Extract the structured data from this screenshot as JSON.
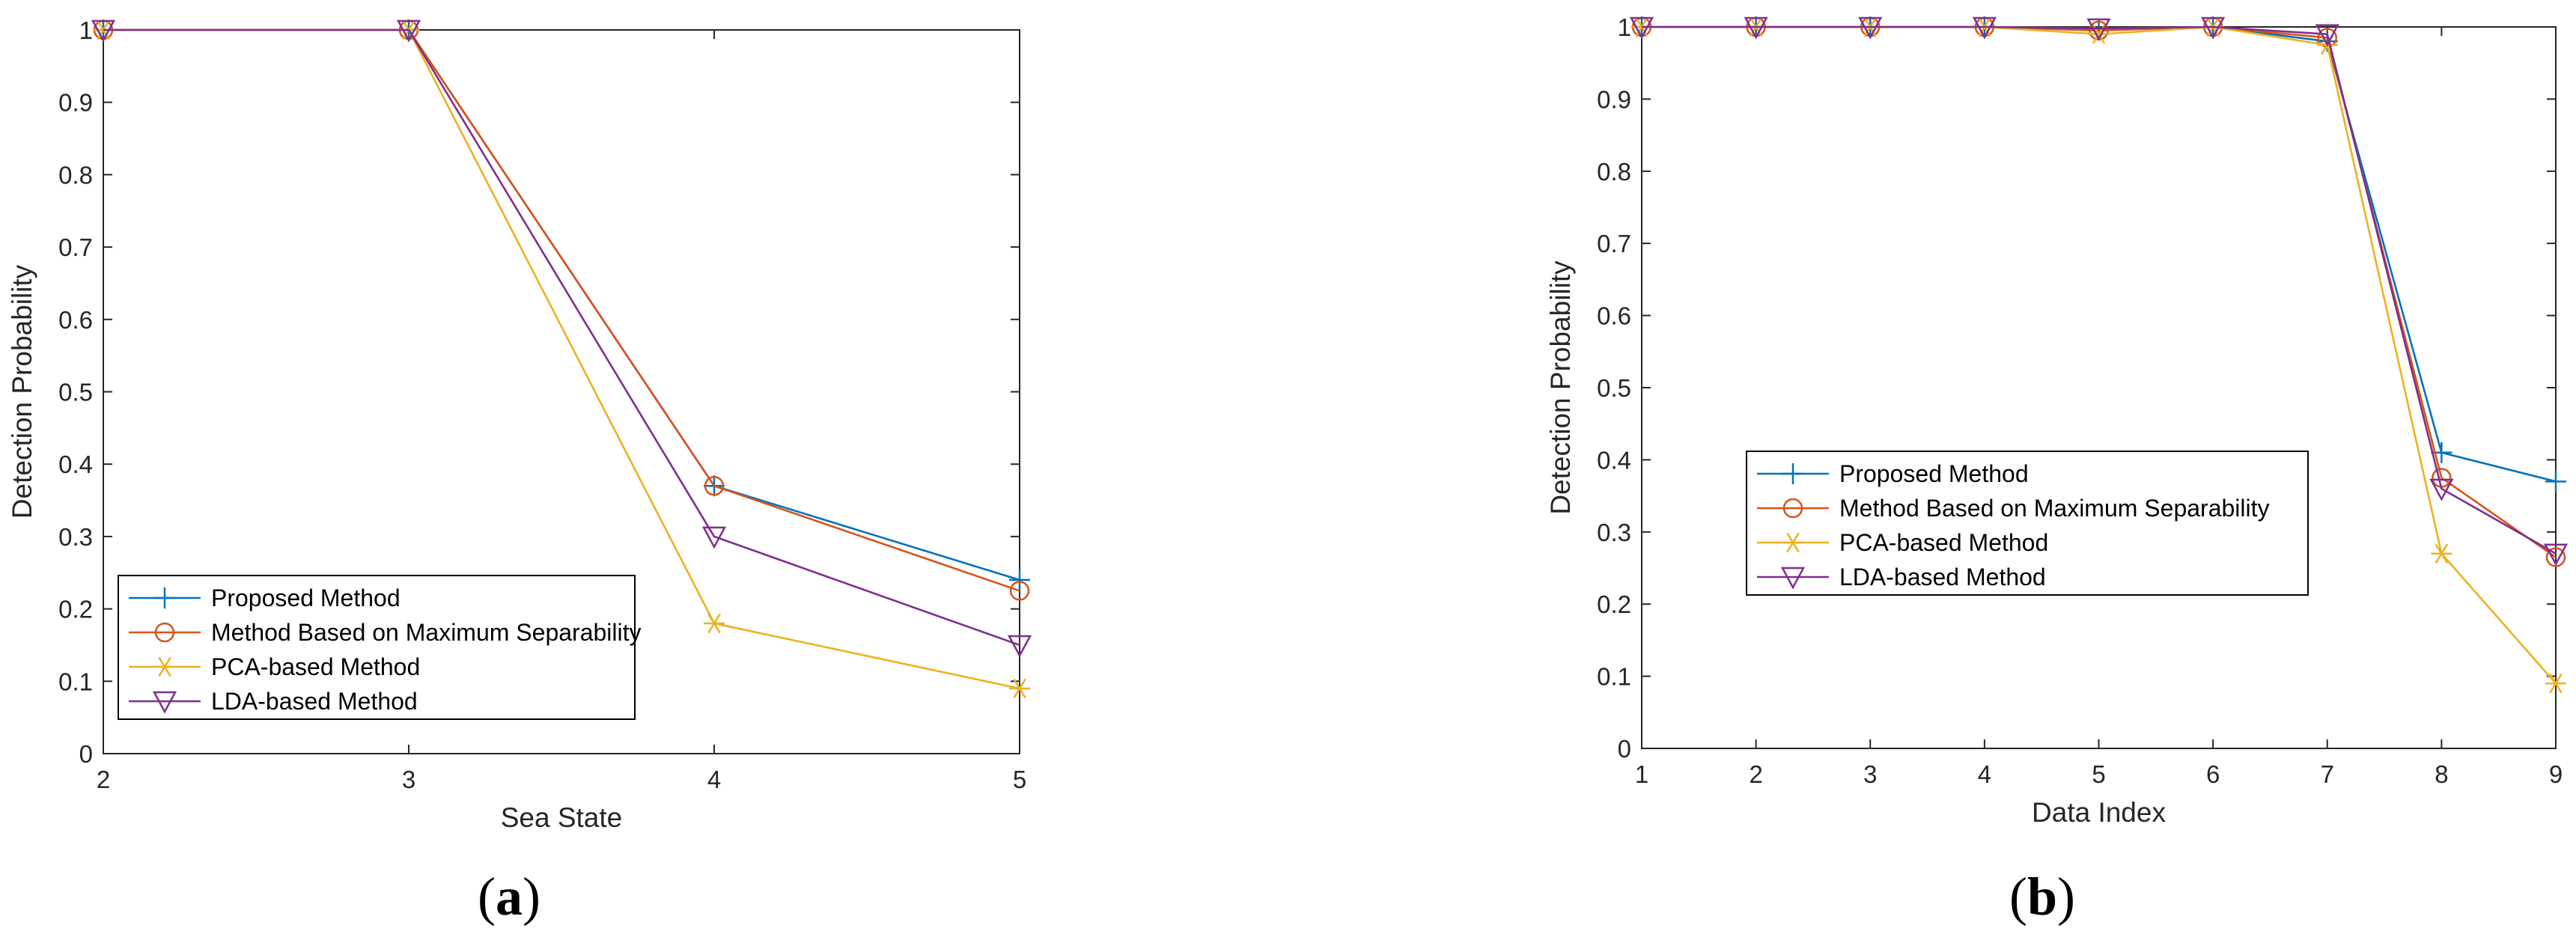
{
  "colors": {
    "proposed": "#0072BD",
    "max_sep": "#D95319",
    "pca": "#EDB120",
    "lda": "#7E2F8E",
    "axis": "#262626"
  },
  "chart_data": [
    {
      "type": "line",
      "panel_label": "a",
      "xlabel": "Sea State",
      "ylabel": "Detection Probability",
      "x": [
        2,
        3,
        4,
        5
      ],
      "xlim": [
        2,
        5
      ],
      "ylim": [
        0,
        1
      ],
      "xticks": [
        "2",
        "3",
        "4",
        "5"
      ],
      "yticks": [
        "0",
        "0.1",
        "0.2",
        "0.3",
        "0.4",
        "0.5",
        "0.6",
        "0.7",
        "0.8",
        "0.9",
        "1"
      ],
      "grid": false,
      "legend_position": "lower-left",
      "series": [
        {
          "name": "Proposed Method",
          "marker": "plus",
          "color_key": "proposed",
          "values": [
            1.0,
            1.0,
            0.37,
            0.24
          ]
        },
        {
          "name": "Method Based on Maximum Separability",
          "marker": "circle",
          "color_key": "max_sep",
          "values": [
            1.0,
            1.0,
            0.37,
            0.225
          ]
        },
        {
          "name": "PCA-based Method",
          "marker": "asterisk",
          "color_key": "pca",
          "values": [
            1.0,
            1.0,
            0.18,
            0.09
          ]
        },
        {
          "name": "LDA-based Method",
          "marker": "triangle-down",
          "color_key": "lda",
          "values": [
            1.0,
            1.0,
            0.3,
            0.15
          ]
        }
      ]
    },
    {
      "type": "line",
      "panel_label": "b",
      "xlabel": "Data Index",
      "ylabel": "Detection Probability",
      "x": [
        1,
        2,
        3,
        4,
        5,
        6,
        7,
        8,
        9
      ],
      "xlim": [
        1,
        9
      ],
      "ylim": [
        0,
        1
      ],
      "xticks": [
        "1",
        "2",
        "3",
        "4",
        "5",
        "6",
        "7",
        "8",
        "9"
      ],
      "yticks": [
        "0",
        "0.1",
        "0.2",
        "0.3",
        "0.4",
        "0.5",
        "0.6",
        "0.7",
        "0.8",
        "0.9",
        "1"
      ],
      "grid": false,
      "legend_position": "center-left",
      "series": [
        {
          "name": "Proposed Method",
          "marker": "plus",
          "color_key": "proposed",
          "values": [
            1.0,
            1.0,
            1.0,
            1.0,
            0.997,
            1.0,
            0.98,
            0.41,
            0.37
          ]
        },
        {
          "name": "Method Based on Maximum Separability",
          "marker": "circle",
          "color_key": "max_sep",
          "values": [
            1.0,
            1.0,
            1.0,
            1.0,
            0.995,
            1.0,
            0.985,
            0.375,
            0.265
          ]
        },
        {
          "name": "PCA-based Method",
          "marker": "asterisk",
          "color_key": "pca",
          "values": [
            1.0,
            1.0,
            1.0,
            1.0,
            0.99,
            1.0,
            0.975,
            0.27,
            0.09
          ]
        },
        {
          "name": "LDA-based Method",
          "marker": "triangle-down",
          "color_key": "lda",
          "values": [
            1.0,
            1.0,
            1.0,
            1.0,
            0.998,
            1.0,
            0.99,
            0.36,
            0.27
          ]
        }
      ]
    }
  ],
  "captions": [
    "(a)",
    "(b)"
  ]
}
